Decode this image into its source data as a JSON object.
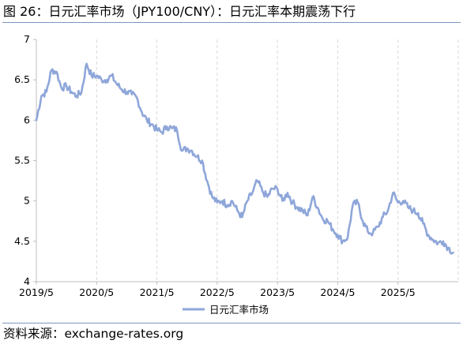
{
  "figure": {
    "title": "图 26：日元汇率市场（JPY100/CNY）：日元汇率本期震荡下行",
    "source": "资料来源：exchange-rates.org"
  },
  "chart_data": {
    "type": "line",
    "title": "",
    "xlabel": "",
    "ylabel": "",
    "ylim": [
      4,
      7
    ],
    "yticks": [
      4,
      4.5,
      5,
      5.5,
      6,
      6.5,
      7
    ],
    "y_tick_labels": [
      "4",
      "4.5",
      "5",
      "5.5",
      "6",
      "6.5",
      "7"
    ],
    "x_tick_labels": [
      "2019/5",
      "2020/5",
      "2021/5",
      "2022/5",
      "2023/5",
      "2024/5",
      "2025/5"
    ],
    "xlim": [
      "2019-05",
      "2026-05"
    ],
    "grid": {
      "vertical": true,
      "horizontal": false,
      "style": "dashed"
    },
    "legend": "bottom-center",
    "color": "#8ea6d9",
    "series": [
      {
        "name": "日元汇率市场",
        "points": [
          [
            "2019-05",
            6.0
          ],
          [
            "2019-06",
            6.3
          ],
          [
            "2019-07",
            6.35
          ],
          [
            "2019-08",
            6.62
          ],
          [
            "2019-09",
            6.6
          ],
          [
            "2019-10",
            6.4
          ],
          [
            "2019-11",
            6.42
          ],
          [
            "2019-12",
            6.35
          ],
          [
            "2020-01",
            6.3
          ],
          [
            "2020-02",
            6.35
          ],
          [
            "2020-03",
            6.7
          ],
          [
            "2020-04",
            6.55
          ],
          [
            "2020-05",
            6.55
          ],
          [
            "2020-06",
            6.5
          ],
          [
            "2020-07",
            6.5
          ],
          [
            "2020-08",
            6.55
          ],
          [
            "2020-09",
            6.45
          ],
          [
            "2020-10",
            6.38
          ],
          [
            "2020-11",
            6.35
          ],
          [
            "2020-12",
            6.32
          ],
          [
            "2021-01",
            6.28
          ],
          [
            "2021-02",
            6.1
          ],
          [
            "2021-03",
            6.0
          ],
          [
            "2021-04",
            5.95
          ],
          [
            "2021-05",
            5.88
          ],
          [
            "2021-06",
            5.85
          ],
          [
            "2021-07",
            5.92
          ],
          [
            "2021-08",
            5.9
          ],
          [
            "2021-09",
            5.88
          ],
          [
            "2021-10",
            5.62
          ],
          [
            "2021-11",
            5.65
          ],
          [
            "2021-12",
            5.62
          ],
          [
            "2022-01",
            5.55
          ],
          [
            "2022-02",
            5.5
          ],
          [
            "2022-03",
            5.25
          ],
          [
            "2022-04",
            5.05
          ],
          [
            "2022-05",
            4.98
          ],
          [
            "2022-06",
            5.0
          ],
          [
            "2022-07",
            4.95
          ],
          [
            "2022-08",
            5.0
          ],
          [
            "2022-09",
            4.88
          ],
          [
            "2022-10",
            4.8
          ],
          [
            "2022-11",
            5.0
          ],
          [
            "2022-12",
            5.1
          ],
          [
            "2023-01",
            5.25
          ],
          [
            "2023-02",
            5.12
          ],
          [
            "2023-03",
            5.05
          ],
          [
            "2023-04",
            5.15
          ],
          [
            "2023-05",
            5.15
          ],
          [
            "2023-06",
            5.0
          ],
          [
            "2023-07",
            5.1
          ],
          [
            "2023-08",
            4.98
          ],
          [
            "2023-09",
            4.92
          ],
          [
            "2023-10",
            4.88
          ],
          [
            "2023-11",
            4.82
          ],
          [
            "2023-12",
            5.05
          ],
          [
            "2024-01",
            4.92
          ],
          [
            "2024-02",
            4.78
          ],
          [
            "2024-03",
            4.75
          ],
          [
            "2024-04",
            4.65
          ],
          [
            "2024-05",
            4.58
          ],
          [
            "2024-06",
            4.5
          ],
          [
            "2024-07",
            4.55
          ],
          [
            "2024-08",
            4.95
          ],
          [
            "2024-09",
            4.98
          ],
          [
            "2024-10",
            4.75
          ],
          [
            "2024-11",
            4.62
          ],
          [
            "2024-12",
            4.6
          ],
          [
            "2025-01",
            4.68
          ],
          [
            "2025-02",
            4.8
          ],
          [
            "2025-03",
            4.88
          ],
          [
            "2025-04",
            5.1
          ],
          [
            "2025-05",
            4.98
          ],
          [
            "2025-06",
            5.0
          ],
          [
            "2025-07",
            4.92
          ],
          [
            "2025-08",
            4.88
          ],
          [
            "2025-09",
            4.85
          ],
          [
            "2025-10",
            4.72
          ],
          [
            "2025-11",
            4.58
          ],
          [
            "2025-12",
            4.52
          ],
          [
            "2026-01",
            4.48
          ],
          [
            "2026-02",
            4.5
          ],
          [
            "2026-03",
            4.42
          ],
          [
            "2026-04",
            4.36
          ]
        ]
      }
    ]
  }
}
